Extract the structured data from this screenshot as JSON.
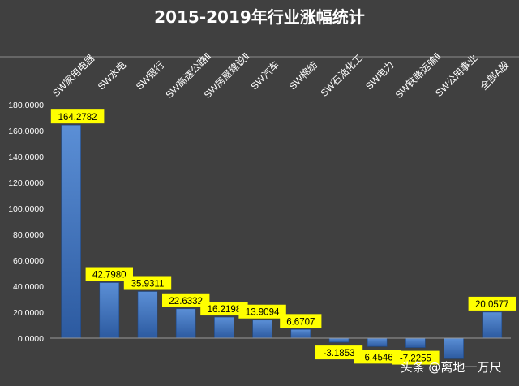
{
  "chart_data": {
    "type": "bar",
    "title": "2015-2019年行业涨幅统计",
    "categories": [
      "SW家用电器",
      "SW水电",
      "SW银行",
      "SW高速公路Ⅱ",
      "SW房屋建设Ⅱ",
      "SW汽车",
      "SW棉纺",
      "SW石油化工",
      "SW电力",
      "SW铁路运输Ⅱ",
      "SW公用事业",
      "全部A股"
    ],
    "values": [
      164.2782,
      42.798,
      35.9311,
      22.6332,
      16.2198,
      13.9094,
      6.6707,
      -3.1853,
      -6.4546,
      -7.2255,
      -15.8,
      20.0577
    ],
    "data_labels": [
      "164.2782",
      "42.7980",
      "35.9311",
      "22.6332",
      "16.2198",
      "13.9094",
      "6.6707",
      "-3.1853",
      "-6.4546",
      "-7.2255",
      "",
      "20.0577"
    ],
    "yticks": [
      "0.0000",
      "20.0000",
      "40.0000",
      "60.0000",
      "80.0000",
      "100.0000",
      "120.0000",
      "140.0000",
      "160.0000",
      "180.0000"
    ],
    "ylim": [
      -18,
      185
    ],
    "grid": false,
    "legend": "none"
  },
  "watermark": "头条 @离地一万尺",
  "colors": {
    "background": "#404040",
    "bar_top": "#5b8fd6",
    "bar_bottom": "#2c5aa0",
    "label_bg": "#ffff00",
    "label_text": "#000000",
    "text": "#ffffff"
  }
}
